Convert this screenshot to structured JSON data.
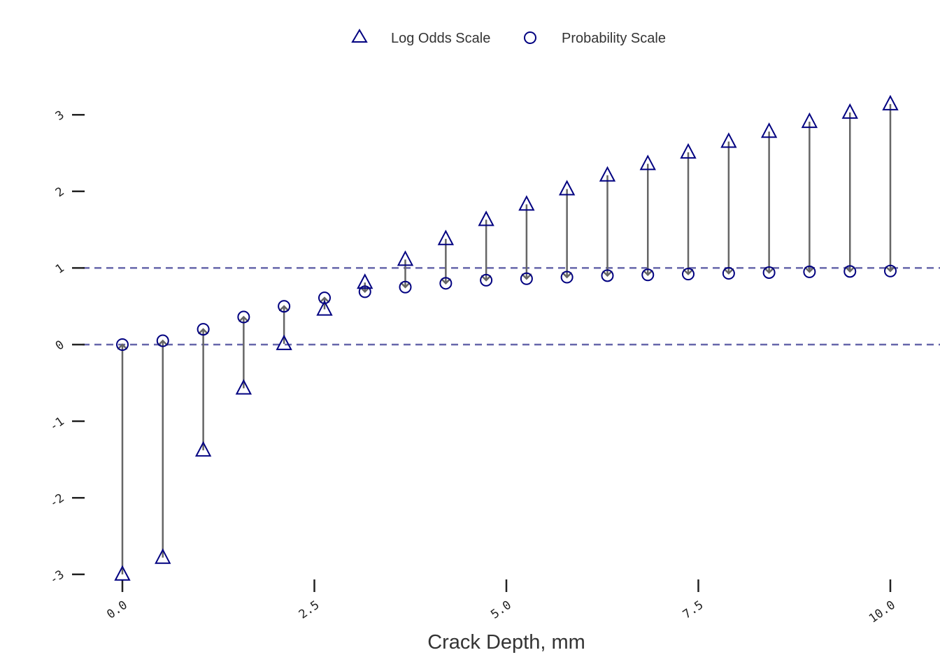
{
  "chart_data": {
    "type": "scatter",
    "title": "",
    "xlabel": "Crack Depth, mm",
    "ylabel": "",
    "xlim": [
      -0.3,
      10.45
    ],
    "ylim": [
      -3.1,
      3.3
    ],
    "x_ticks": [
      "0.0",
      "2.5",
      "5.0",
      "7.5",
      "10.0"
    ],
    "x_tick_values": [
      0,
      2.5,
      5.0,
      7.5,
      10.0
    ],
    "y_ticks": [
      "-3",
      "-2",
      "-1",
      "0",
      "1",
      "2",
      "3"
    ],
    "y_tick_values": [
      -3,
      -2,
      -1,
      0,
      1,
      2,
      3
    ],
    "reference_lines": [
      0,
      1
    ],
    "grid": false,
    "legend_position": "top-center",
    "x": [
      0.0,
      0.526,
      1.053,
      1.579,
      2.105,
      2.632,
      3.158,
      3.684,
      4.211,
      4.737,
      5.263,
      5.789,
      6.316,
      6.842,
      7.368,
      7.895,
      8.421,
      8.947,
      9.474,
      10.0
    ],
    "series": [
      {
        "name": "Log Odds Scale",
        "marker": "triangle",
        "values": [
          -3.0,
          -2.78,
          -1.38,
          -0.57,
          0.01,
          0.46,
          0.81,
          1.11,
          1.38,
          1.63,
          1.83,
          2.03,
          2.21,
          2.36,
          2.51,
          2.65,
          2.78,
          2.91,
          3.03,
          3.14
        ]
      },
      {
        "name": "Probability Scale",
        "marker": "circle",
        "values": [
          0.0,
          0.05,
          0.2,
          0.36,
          0.5,
          0.61,
          0.69,
          0.75,
          0.8,
          0.84,
          0.86,
          0.88,
          0.9,
          0.91,
          0.92,
          0.93,
          0.94,
          0.95,
          0.955,
          0.96
        ]
      }
    ],
    "colors": {
      "marker": "#000080",
      "arrow": "#666666",
      "reference_line": "#6666aa",
      "axis": "#222222"
    }
  }
}
